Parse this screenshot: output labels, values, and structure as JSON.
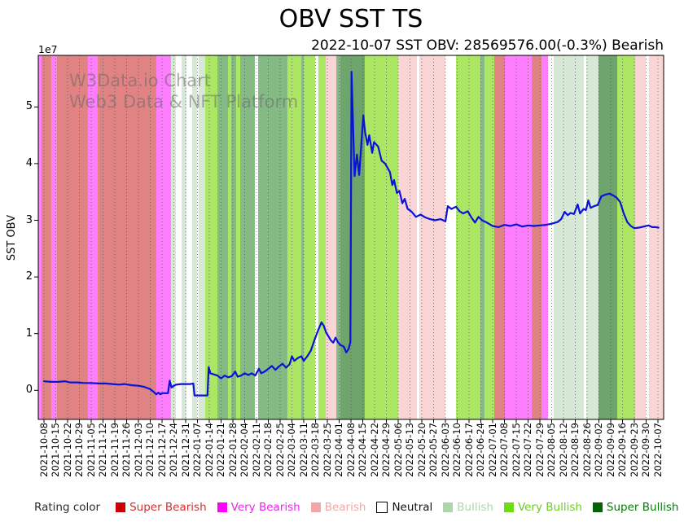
{
  "header": {
    "title": "OBV SST TS",
    "subtitle": "2022-10-07 SST OBV: 28569576.00(-0.3%) Bearish"
  },
  "watermark": {
    "line1": "W3Data.io Chart",
    "line2": "Web3 Data & NFT Platform"
  },
  "y_axis": {
    "label": "SST OBV",
    "scale_note": "1e7",
    "ticks": [
      0,
      1,
      2,
      3,
      4,
      5
    ]
  },
  "legend": {
    "title": "Rating color",
    "items": [
      {
        "label": "Super Bearish",
        "swatch_color": "#cc0000",
        "text_color": "#cc3333",
        "border": false
      },
      {
        "label": "Very Bearish",
        "swatch_color": "#ff00ff",
        "text_color": "#ee22ee",
        "border": false
      },
      {
        "label": "Bearish",
        "swatch_color": "#f2a6a6",
        "text_color": "#f2a6a6",
        "border": false
      },
      {
        "label": "Neutral",
        "swatch_color": "#ffffff",
        "text_color": "#111111",
        "border": true
      },
      {
        "label": "Bullish",
        "swatch_color": "#aed6ae",
        "text_color": "#aed6ae",
        "border": false
      },
      {
        "label": "Very Bullish",
        "swatch_color": "#6fdc13",
        "text_color": "#6fcc22",
        "border": false
      },
      {
        "label": "Super Bullish",
        "swatch_color": "#046404",
        "text_color": "#0a7a0a",
        "border": false
      }
    ]
  },
  "chart_data": {
    "type": "line",
    "title": "OBV SST TS",
    "subtitle": "2022-10-07 SST OBV: 28569576.00(-0.3%) Bearish",
    "xlabel": "",
    "ylabel": "SST OBV",
    "y_multiplier": "1e7",
    "ylim": [
      -0.51,
      5.91
    ],
    "grid": "vertical-dotted-weekly",
    "legend_position": "bottom",
    "line_color": "#0a12d9",
    "x_tick_labels": [
      "2021-10-08",
      "2021-10-15",
      "2021-10-22",
      "2021-10-29",
      "2021-11-05",
      "2021-11-12",
      "2021-11-19",
      "2021-11-26",
      "2021-12-03",
      "2021-12-10",
      "2021-12-17",
      "2021-12-24",
      "2021-12-31",
      "2022-01-07",
      "2022-01-14",
      "2022-01-21",
      "2022-01-28",
      "2022-02-04",
      "2022-02-11",
      "2022-02-18",
      "2022-02-25",
      "2022-03-04",
      "2022-03-11",
      "2022-03-18",
      "2022-03-25",
      "2022-04-01",
      "2022-04-08",
      "2022-04-15",
      "2022-04-22",
      "2022-04-29",
      "2022-05-06",
      "2022-05-13",
      "2022-05-20",
      "2022-05-27",
      "2022-06-03",
      "2022-06-10",
      "2022-06-17",
      "2022-06-24",
      "2022-07-01",
      "2022-07-08",
      "2022-07-15",
      "2022-07-22",
      "2022-07-29",
      "2022-08-05",
      "2022-08-12",
      "2022-08-19",
      "2022-08-26",
      "2022-09-02",
      "2022-09-09",
      "2022-09-16",
      "2022-09-23",
      "2022-09-30",
      "2022-10-07"
    ],
    "series": [
      {
        "name": "SST OBV",
        "units": "1e7",
        "points": [
          [
            0,
            0.16
          ],
          [
            0.6,
            0.15
          ],
          [
            1.2,
            0.15
          ],
          [
            1.8,
            0.16
          ],
          [
            2.2,
            0.14
          ],
          [
            2.8,
            0.14
          ],
          [
            3.4,
            0.13
          ],
          [
            4,
            0.13
          ],
          [
            4.6,
            0.12
          ],
          [
            5.2,
            0.12
          ],
          [
            5.8,
            0.11
          ],
          [
            6.4,
            0.1
          ],
          [
            6.8,
            0.11
          ],
          [
            7.4,
            0.09
          ],
          [
            8,
            0.08
          ],
          [
            8.5,
            0.06
          ],
          [
            9,
            0.02
          ],
          [
            9.3,
            -0.03
          ],
          [
            9.5,
            -0.07
          ],
          [
            9.7,
            -0.04
          ],
          [
            9.85,
            -0.07
          ],
          [
            10,
            -0.05
          ],
          [
            10.5,
            -0.05
          ],
          [
            10.65,
            0.17
          ],
          [
            10.8,
            0.05
          ],
          [
            11,
            0.08
          ],
          [
            11.2,
            0.1
          ],
          [
            11.6,
            0.11
          ],
          [
            12,
            0.11
          ],
          [
            12.4,
            0.11
          ],
          [
            12.65,
            0.12
          ],
          [
            12.75,
            -0.09
          ],
          [
            13.2,
            -0.09
          ],
          [
            13.85,
            -0.09
          ],
          [
            13.95,
            0.41
          ],
          [
            14.1,
            0.3
          ],
          [
            14.4,
            0.28
          ],
          [
            14.7,
            0.26
          ],
          [
            15,
            0.21
          ],
          [
            15.3,
            0.26
          ],
          [
            15.6,
            0.23
          ],
          [
            15.9,
            0.25
          ],
          [
            16.2,
            0.33
          ],
          [
            16.4,
            0.24
          ],
          [
            16.7,
            0.26
          ],
          [
            17,
            0.3
          ],
          [
            17.3,
            0.27
          ],
          [
            17.6,
            0.3
          ],
          [
            17.9,
            0.26
          ],
          [
            18.2,
            0.38
          ],
          [
            18.4,
            0.3
          ],
          [
            18.7,
            0.33
          ],
          [
            19,
            0.38
          ],
          [
            19.3,
            0.43
          ],
          [
            19.6,
            0.36
          ],
          [
            19.9,
            0.42
          ],
          [
            20.2,
            0.47
          ],
          [
            20.5,
            0.4
          ],
          [
            20.8,
            0.46
          ],
          [
            21,
            0.6
          ],
          [
            21.2,
            0.52
          ],
          [
            21.5,
            0.57
          ],
          [
            21.8,
            0.6
          ],
          [
            22,
            0.52
          ],
          [
            22.3,
            0.6
          ],
          [
            22.6,
            0.7
          ],
          [
            22.9,
            0.88
          ],
          [
            23.2,
            1.05
          ],
          [
            23.5,
            1.2
          ],
          [
            23.7,
            1.14
          ],
          [
            23.9,
            1.02
          ],
          [
            24.1,
            0.95
          ],
          [
            24.3,
            0.88
          ],
          [
            24.5,
            0.84
          ],
          [
            24.7,
            0.93
          ],
          [
            24.9,
            0.85
          ],
          [
            25.1,
            0.8
          ],
          [
            25.4,
            0.77
          ],
          [
            25.6,
            0.67
          ],
          [
            25.8,
            0.73
          ],
          [
            25.95,
            0.85
          ],
          [
            26.05,
            5.62
          ],
          [
            26.3,
            3.78
          ],
          [
            26.5,
            4.16
          ],
          [
            26.7,
            3.8
          ],
          [
            27.05,
            4.85
          ],
          [
            27.2,
            4.55
          ],
          [
            27.4,
            4.33
          ],
          [
            27.55,
            4.5
          ],
          [
            27.8,
            4.19
          ],
          [
            27.95,
            4.38
          ],
          [
            28.3,
            4.3
          ],
          [
            28.6,
            4.05
          ],
          [
            28.9,
            4.0
          ],
          [
            29.3,
            3.85
          ],
          [
            29.5,
            3.62
          ],
          [
            29.65,
            3.71
          ],
          [
            29.9,
            3.48
          ],
          [
            30.1,
            3.52
          ],
          [
            30.35,
            3.3
          ],
          [
            30.55,
            3.38
          ],
          [
            30.8,
            3.2
          ],
          [
            31.1,
            3.16
          ],
          [
            31.5,
            3.06
          ],
          [
            31.9,
            3.1
          ],
          [
            32.3,
            3.05
          ],
          [
            32.7,
            3.02
          ],
          [
            33.1,
            3.0
          ],
          [
            33.6,
            3.02
          ],
          [
            34,
            2.98
          ],
          [
            34.2,
            3.25
          ],
          [
            34.5,
            3.2
          ],
          [
            34.9,
            3.24
          ],
          [
            35.2,
            3.16
          ],
          [
            35.5,
            3.12
          ],
          [
            35.9,
            3.16
          ],
          [
            36.2,
            3.05
          ],
          [
            36.5,
            2.96
          ],
          [
            36.8,
            3.06
          ],
          [
            37.1,
            3.0
          ],
          [
            37.5,
            2.96
          ],
          [
            38,
            2.9
          ],
          [
            38.5,
            2.88
          ],
          [
            39,
            2.92
          ],
          [
            39.5,
            2.9
          ],
          [
            40,
            2.93
          ],
          [
            40.5,
            2.89
          ],
          [
            41,
            2.91
          ],
          [
            41.5,
            2.9
          ],
          [
            42,
            2.91
          ],
          [
            42.5,
            2.92
          ],
          [
            43,
            2.94
          ],
          [
            43.5,
            2.97
          ],
          [
            43.8,
            3.02
          ],
          [
            44.1,
            3.15
          ],
          [
            44.35,
            3.09
          ],
          [
            44.6,
            3.13
          ],
          [
            44.9,
            3.11
          ],
          [
            45.2,
            3.28
          ],
          [
            45.4,
            3.12
          ],
          [
            45.7,
            3.2
          ],
          [
            45.9,
            3.18
          ],
          [
            46.1,
            3.35
          ],
          [
            46.3,
            3.22
          ],
          [
            46.6,
            3.25
          ],
          [
            46.9,
            3.27
          ],
          [
            47.2,
            3.42
          ],
          [
            47.5,
            3.45
          ],
          [
            47.9,
            3.47
          ],
          [
            48.2,
            3.44
          ],
          [
            48.5,
            3.4
          ],
          [
            48.8,
            3.32
          ],
          [
            49.1,
            3.12
          ],
          [
            49.4,
            2.97
          ],
          [
            49.7,
            2.9
          ],
          [
            50,
            2.86
          ],
          [
            50.4,
            2.87
          ],
          [
            50.8,
            2.89
          ],
          [
            51.2,
            2.91
          ],
          [
            51.5,
            2.88
          ],
          [
            51.8,
            2.88
          ],
          [
            52.05,
            2.87
          ]
        ]
      }
    ],
    "band_colors": {
      "super_bearish": "#e28383",
      "very_bearish": "#ff7dff",
      "bearish": "#f9d5d5",
      "neutral": "#ffffff",
      "bullish": "#d7e8d7",
      "very_bullish": "#abe763",
      "super_bullish": "#84bb84",
      "super_bullish_deep": "#6da56d"
    },
    "background_bands": [
      {
        "x0": 0.0,
        "x1": 0.0052,
        "rating": "very_bearish"
      },
      {
        "x0": 0.0052,
        "x1": 0.0208,
        "rating": "super_bearish"
      },
      {
        "x0": 0.0208,
        "x1": 0.0299,
        "rating": "very_bearish"
      },
      {
        "x0": 0.0299,
        "x1": 0.0794,
        "rating": "super_bearish"
      },
      {
        "x0": 0.0794,
        "x1": 0.0951,
        "rating": "very_bearish"
      },
      {
        "x0": 0.0951,
        "x1": 0.1888,
        "rating": "super_bearish"
      },
      {
        "x0": 0.1888,
        "x1": 0.2122,
        "rating": "very_bearish"
      },
      {
        "x0": 0.2122,
        "x1": 0.2201,
        "rating": "bullish"
      },
      {
        "x0": 0.2201,
        "x1": 0.2292,
        "rating": "neutral"
      },
      {
        "x0": 0.2292,
        "x1": 0.237,
        "rating": "bullish"
      },
      {
        "x0": 0.237,
        "x1": 0.2461,
        "rating": "neutral"
      },
      {
        "x0": 0.2461,
        "x1": 0.2539,
        "rating": "bullish"
      },
      {
        "x0": 0.2539,
        "x1": 0.2565,
        "rating": "neutral"
      },
      {
        "x0": 0.2565,
        "x1": 0.2669,
        "rating": "bullish"
      },
      {
        "x0": 0.2669,
        "x1": 0.2865,
        "rating": "very_bullish"
      },
      {
        "x0": 0.2865,
        "x1": 0.3034,
        "rating": "super_bullish"
      },
      {
        "x0": 0.3034,
        "x1": 0.3086,
        "rating": "very_bullish"
      },
      {
        "x0": 0.3086,
        "x1": 0.3164,
        "rating": "super_bullish"
      },
      {
        "x0": 0.3164,
        "x1": 0.3229,
        "rating": "very_bullish"
      },
      {
        "x0": 0.3229,
        "x1": 0.3464,
        "rating": "super_bullish"
      },
      {
        "x0": 0.3464,
        "x1": 0.3516,
        "rating": "neutral"
      },
      {
        "x0": 0.3516,
        "x1": 0.3984,
        "rating": "super_bullish"
      },
      {
        "x0": 0.3984,
        "x1": 0.4206,
        "rating": "very_bullish"
      },
      {
        "x0": 0.4206,
        "x1": 0.4245,
        "rating": "super_bullish"
      },
      {
        "x0": 0.4245,
        "x1": 0.4427,
        "rating": "very_bullish"
      },
      {
        "x0": 0.4427,
        "x1": 0.4479,
        "rating": "neutral"
      },
      {
        "x0": 0.4479,
        "x1": 0.4596,
        "rating": "very_bullish"
      },
      {
        "x0": 0.4596,
        "x1": 0.4766,
        "rating": "bearish"
      },
      {
        "x0": 0.4766,
        "x1": 0.4831,
        "rating": "super_bullish"
      },
      {
        "x0": 0.4831,
        "x1": 0.5221,
        "rating": "super_bullish_deep"
      },
      {
        "x0": 0.5221,
        "x1": 0.5755,
        "rating": "very_bullish"
      },
      {
        "x0": 0.5755,
        "x1": 0.6055,
        "rating": "bearish"
      },
      {
        "x0": 0.6055,
        "x1": 0.6094,
        "rating": "neutral"
      },
      {
        "x0": 0.6094,
        "x1": 0.651,
        "rating": "bearish"
      },
      {
        "x0": 0.651,
        "x1": 0.668,
        "rating": "neutral"
      },
      {
        "x0": 0.668,
        "x1": 0.707,
        "rating": "very_bullish"
      },
      {
        "x0": 0.707,
        "x1": 0.7135,
        "rating": "super_bullish"
      },
      {
        "x0": 0.7135,
        "x1": 0.7292,
        "rating": "very_bullish"
      },
      {
        "x0": 0.7292,
        "x1": 0.7461,
        "rating": "super_bearish"
      },
      {
        "x0": 0.7461,
        "x1": 0.7891,
        "rating": "very_bearish"
      },
      {
        "x0": 0.7891,
        "x1": 0.8047,
        "rating": "super_bearish"
      },
      {
        "x0": 0.8047,
        "x1": 0.8151,
        "rating": "very_bearish"
      },
      {
        "x0": 0.8151,
        "x1": 0.8242,
        "rating": "neutral"
      },
      {
        "x0": 0.8242,
        "x1": 0.8724,
        "rating": "bullish"
      },
      {
        "x0": 0.8724,
        "x1": 0.8763,
        "rating": "neutral"
      },
      {
        "x0": 0.8763,
        "x1": 0.8958,
        "rating": "bullish"
      },
      {
        "x0": 0.8958,
        "x1": 0.9258,
        "rating": "super_bullish_deep"
      },
      {
        "x0": 0.9258,
        "x1": 0.9544,
        "rating": "very_bullish"
      },
      {
        "x0": 0.9544,
        "x1": 0.9714,
        "rating": "bearish"
      },
      {
        "x0": 0.9714,
        "x1": 0.9766,
        "rating": "neutral"
      },
      {
        "x0": 0.9766,
        "x1": 1.0,
        "rating": "bearish"
      }
    ]
  }
}
